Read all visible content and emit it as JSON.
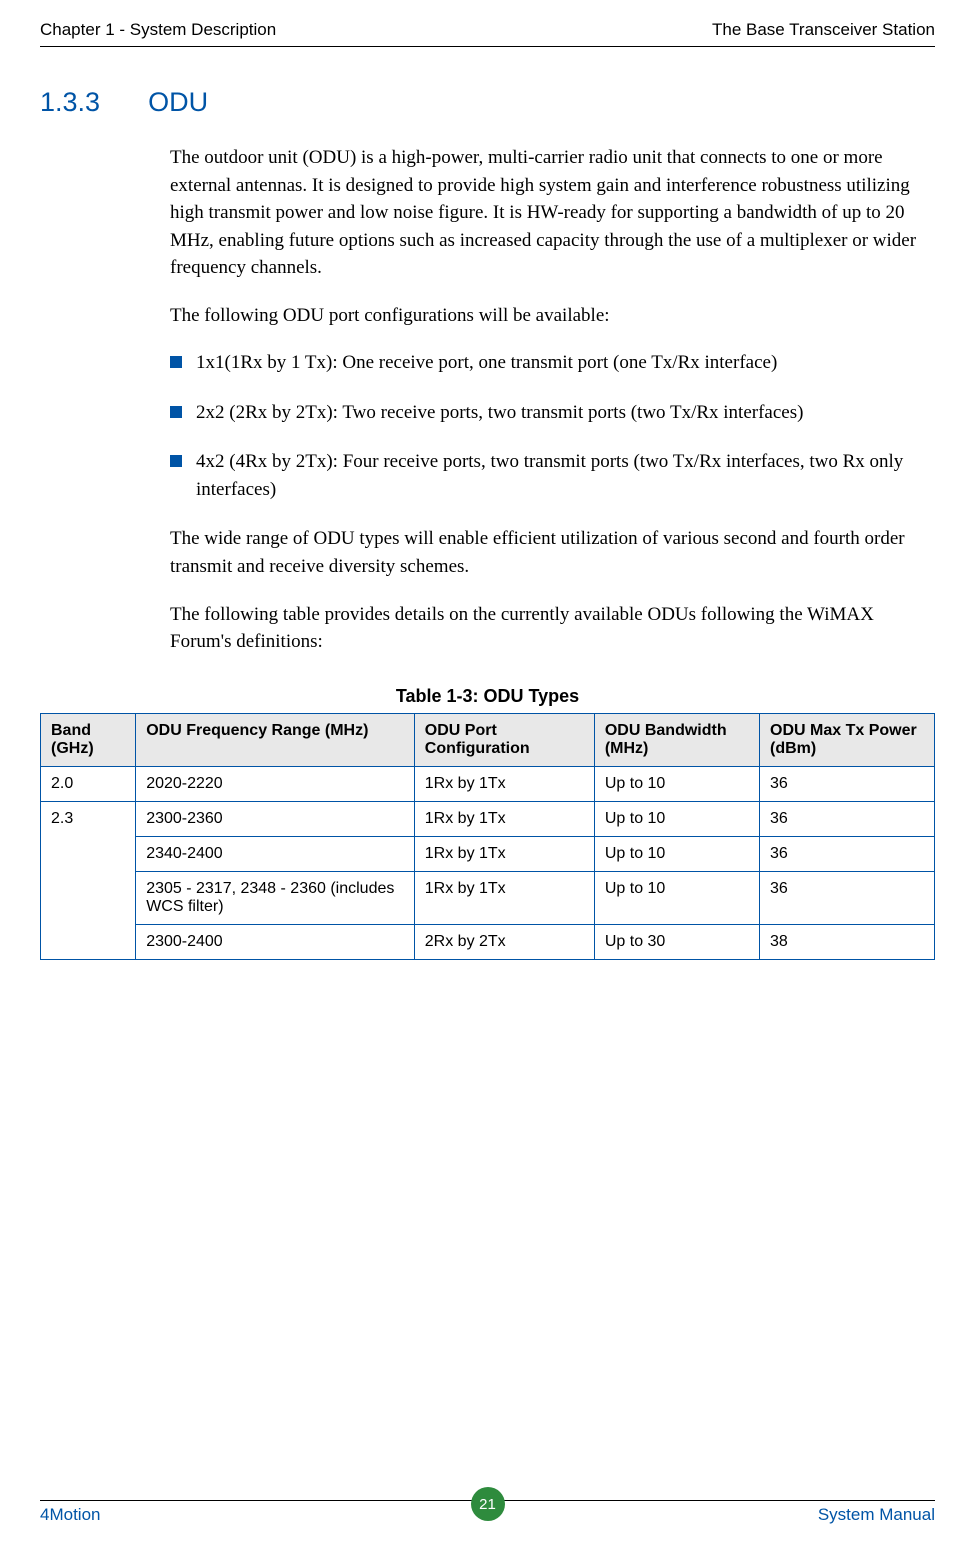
{
  "header": {
    "left": "Chapter 1 - System Description",
    "right": "The Base Transceiver Station"
  },
  "section": {
    "number": "1.3.3",
    "title": "ODU"
  },
  "paragraphs": {
    "intro": "The outdoor unit (ODU) is a high-power, multi-carrier radio unit that connects to one or more external antennas. It is designed to provide high system gain and interference robustness utilizing high transmit power and low noise figure. It is HW-ready for supporting a bandwidth of up to 20 MHz, enabling future options such as increased capacity through the use of a multiplexer or wider frequency channels.",
    "configIntro": "The following ODU port configurations will be available:",
    "afterBullets": "The wide range of ODU types will enable efficient utilization of various second and fourth order transmit and receive diversity schemes.",
    "tableIntro": "The following table provides details on the currently available ODUs following the WiMAX Forum's definitions:"
  },
  "bullets": [
    "1x1(1Rx by 1 Tx): One receive port, one transmit port (one Tx/Rx interface)",
    "2x2 (2Rx by 2Tx): Two receive ports, two transmit ports (two Tx/Rx interfaces)",
    "4x2 (4Rx by 2Tx): Four receive ports, two transmit ports (two Tx/Rx interfaces, two Rx only interfaces)"
  ],
  "table": {
    "caption": "Table 1-3: ODU Types",
    "headers": [
      "Band (GHz)",
      "ODU Frequency Range (MHz)",
      "ODU Port Configuration",
      "ODU Bandwidth (MHz)",
      "ODU Max Tx Power (dBm)"
    ],
    "rows": [
      {
        "band": "2.0",
        "freq": "2020-2220",
        "port": "1Rx by 1Tx",
        "bw": "Up to 10",
        "pw": "36"
      },
      {
        "band": "2.3",
        "freq": "2300-2360",
        "port": "1Rx by 1Tx",
        "bw": "Up to 10",
        "pw": "36"
      },
      {
        "band": "",
        "freq": "2340-2400",
        "port": "1Rx by 1Tx",
        "bw": "Up to 10",
        "pw": "36"
      },
      {
        "band": "",
        "freq": "2305 - 2317, 2348 - 2360 (includes WCS filter)",
        "port": "1Rx by 1Tx",
        "bw": "Up to 10",
        "pw": "36"
      },
      {
        "band": "",
        "freq": "2300-2400",
        "port": "2Rx by 2Tx",
        "bw": "Up to 30",
        "pw": "38"
      }
    ]
  },
  "footer": {
    "left": "4Motion",
    "page": "21",
    "right": "System Manual"
  },
  "colors": {
    "accent": "#0054a6",
    "pageCircle": "#2e8b3d"
  }
}
